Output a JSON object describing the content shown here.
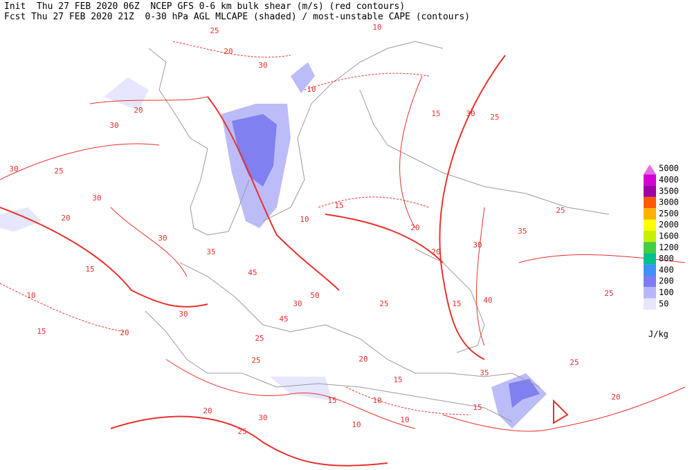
{
  "header": {
    "init_line": "Init  Thu 27 FEB 2020 06Z  NCEP GFS 0-6 km bulk shear (m/s) (red contours)",
    "fcst_line": "Fcst Thu 27 FEB 2020 21Z  0-30 hPa AGL MLCAPE (shaded) / most-unstable CAPE (contours)"
  },
  "legend": {
    "levels": [
      5000,
      4000,
      3500,
      3000,
      2500,
      2000,
      1600,
      1200,
      800,
      400,
      200,
      100,
      50
    ],
    "colors": [
      "#e36ee6",
      "#d400d4",
      "#a000a8",
      "#ff5a00",
      "#ffb000",
      "#ffff00",
      "#c8f000",
      "#40d040",
      "#00c08c",
      "#4090ff",
      "#7c7cf4",
      "#b8b8f8",
      "#e6e6fc"
    ],
    "unit": "J/kg"
  },
  "contour_labels": [
    20,
    30,
    30,
    25,
    30,
    20,
    30,
    15,
    10,
    15,
    20,
    30,
    35,
    45,
    50,
    45,
    30,
    25,
    25,
    20,
    30,
    25,
    15,
    10,
    10,
    15,
    20,
    25,
    20,
    20,
    15,
    40,
    30,
    25,
    15,
    30,
    35,
    25,
    25,
    25,
    20,
    35,
    10,
    30,
    25,
    20,
    10,
    10,
    15,
    15,
    10
  ]
}
